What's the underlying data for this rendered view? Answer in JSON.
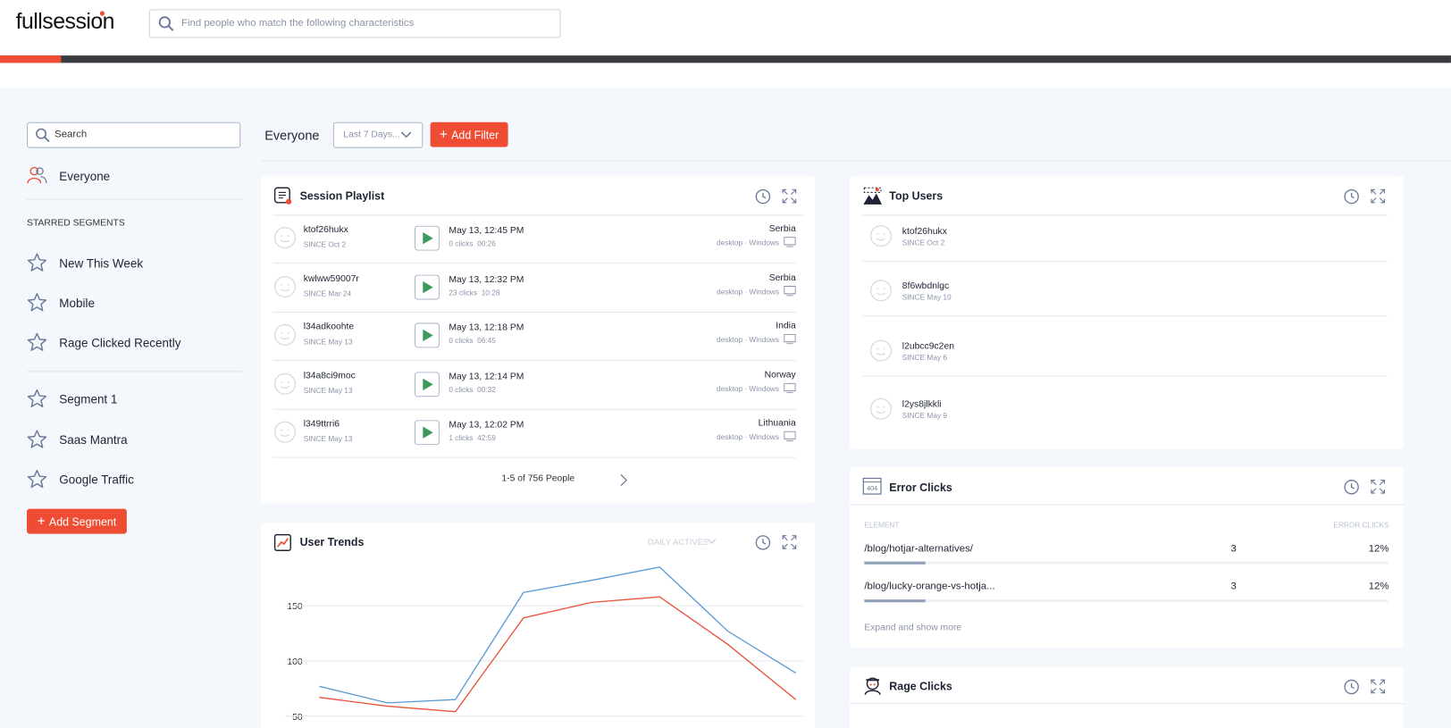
{
  "header": {
    "logo": "fullsession",
    "search_placeholder": "Find people who match the following characteristics"
  },
  "sidebar": {
    "search": "Search",
    "everyone": "Everyone",
    "starred_title": "STARRED SEGMENTS",
    "starred": [
      "New This Week",
      "Mobile",
      "Rage Clicked Recently"
    ],
    "segments": [
      "Segment 1",
      "Saas Mantra",
      "Google Traffic"
    ],
    "add_button": "Add Segment"
  },
  "toolbar": {
    "segment": "Everyone",
    "range": "Last 7 Days...",
    "add_filter": "Add Filter"
  },
  "session_playlist": {
    "title": "Session Playlist",
    "rows": [
      {
        "user": "ktof26hukx",
        "since": "SINCE Oct 2",
        "date": "May 13, 12:45 PM",
        "stats": "0 clicks  00:26",
        "country": "Serbia",
        "device": "desktop · Windows"
      },
      {
        "user": "kwlww59007r",
        "since": "SINCE Mar 24",
        "date": "May 13, 12:32 PM",
        "stats": "23 clicks  10:28",
        "country": "Serbia",
        "device": "desktop · Windows"
      },
      {
        "user": "l34adkoohte",
        "since": "SINCE May 13",
        "date": "May 13, 12:18 PM",
        "stats": "0 clicks  06:45",
        "country": "India",
        "device": "desktop · Windows"
      },
      {
        "user": "l34a8ci9moc",
        "since": "SINCE May 13",
        "date": "May 13, 12:14 PM",
        "stats": "0 clicks  00:32",
        "country": "Norway",
        "device": "desktop · Windows"
      },
      {
        "user": "l349ttrri6",
        "since": "SINCE May 13",
        "date": "May 13, 12:02 PM",
        "stats": "1 clicks  42:59",
        "country": "Lithuania",
        "device": "desktop · Windows"
      }
    ],
    "pagination": "1-5 of 756 People"
  },
  "top_users": {
    "title": "Top Users",
    "users": [
      {
        "name": "ktof26hukx",
        "since": "SINCE Oct 2"
      },
      {
        "name": "8f6wbdnlgc",
        "since": "SINCE May 10"
      },
      {
        "name": "l2ubcc9c2en",
        "since": "SINCE May 6"
      },
      {
        "name": "l2ys8jlkkli",
        "since": "SINCE May 9"
      }
    ]
  },
  "error_clicks": {
    "title": "Error Clicks",
    "columns": [
      "ELEMENT",
      "ERROR CLICKS"
    ],
    "rows": [
      {
        "element": "/blog/hotjar-alternatives/",
        "count": 3,
        "percent": "12%"
      },
      {
        "element": "/blog/lucky-orange-vs-hotja...",
        "count": 3,
        "percent": "12%"
      }
    ],
    "expand": "Expand and show more"
  },
  "rage_clicks": {
    "title": "Rage Clicks"
  },
  "chart_data": {
    "type": "line",
    "title": "User Trends",
    "metric": "DAILY ACTIVES",
    "categories": [
      null,
      null,
      null,
      null,
      null,
      null,
      null,
      null
    ],
    "series": [
      {
        "color": "#5b9bd5",
        "values": [
          77,
          62,
          65,
          162,
          173,
          185,
          127,
          89
        ]
      },
      {
        "color": "#e8533a",
        "values": [
          67,
          59,
          54,
          139,
          153,
          158,
          115,
          65
        ]
      }
    ],
    "ylim": [
      40,
      195
    ],
    "yticks": [
      50,
      100,
      150
    ],
    "grid": true
  }
}
